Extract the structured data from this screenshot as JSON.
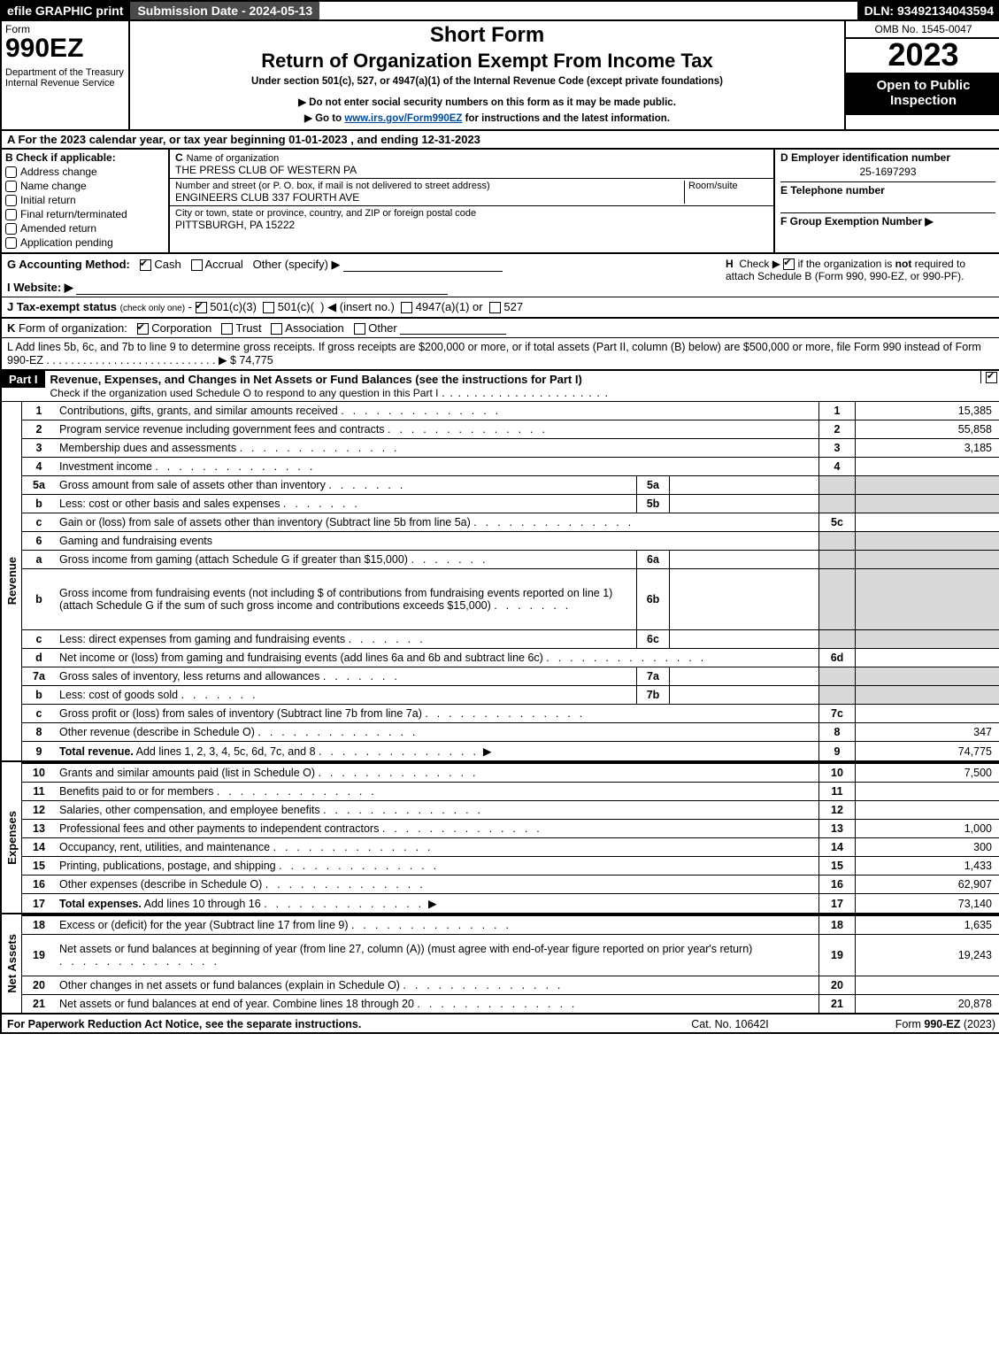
{
  "topbar": {
    "efile": "efile GRAPHIC print",
    "submission": "Submission Date - 2024-05-13",
    "dln": "DLN: 93492134043594"
  },
  "header": {
    "form_label": "Form",
    "form_no": "990EZ",
    "dept": "Department of the Treasury\nInternal Revenue Service",
    "short": "Short Form",
    "return": "Return of Organization Exempt From Income Tax",
    "under": "Under section 501(c), 527, or 4947(a)(1) of the Internal Revenue Code (except private foundations)",
    "warn": "▶ Do not enter social security numbers on this form as it may be made public.",
    "goto_pre": "▶ Go to ",
    "goto_link": "www.irs.gov/Form990EZ",
    "goto_post": " for instructions and the latest information.",
    "omb": "OMB No. 1545-0047",
    "year": "2023",
    "open": "Open to Public Inspection"
  },
  "A": "A  For the 2023 calendar year, or tax year beginning 01-01-2023 , and ending 12-31-2023",
  "B": {
    "label": "B",
    "head": "Check if applicable:",
    "items": [
      "Address change",
      "Name change",
      "Initial return",
      "Final return/terminated",
      "Amended return",
      "Application pending"
    ]
  },
  "C": {
    "c_label": "C",
    "name_label": "Name of organization",
    "name": "THE PRESS CLUB OF WESTERN PA",
    "addr_label": "Number and street (or P. O. box, if mail is not delivered to street address)",
    "room_label": "Room/suite",
    "addr": "ENGINEERS CLUB 337 FOURTH AVE",
    "city_label": "City or town, state or province, country, and ZIP or foreign postal code",
    "city": "PITTSBURGH, PA  15222"
  },
  "D": {
    "d_label": "D Employer identification number",
    "ein": "25-1697293",
    "e_label": "E Telephone number",
    "f_label": "F Group Exemption Number   ▶"
  },
  "G": {
    "label": "G Accounting Method:",
    "cash": "Cash",
    "accrual": "Accrual",
    "other": "Other (specify) ▶"
  },
  "H": "H   Check ▶       if the organization is not required to attach Schedule B (Form 990, 990-EZ, or 990-PF).",
  "I": "I Website: ▶",
  "J": "J Tax-exempt status (check only one) -    501(c)(3)     501(c)(  ) ◀ (insert no.)     4947(a)(1) or     527",
  "K": "K Form of organization:      Corporation     Trust     Association     Other",
  "L": "L Add lines 5b, 6c, and 7b to line 9 to determine gross receipts. If gross receipts are $200,000 or more, or if total assets (Part II, column (B) below) are $500,000 or more, file Form 990 instead of Form 990-EZ  .  .  .  .  .  .  .  .  .  .  .  .  .  .  .  .  .  .  .  .  .  .  .  .  .  .  .  .   ▶ $ 74,775",
  "part1": {
    "label": "Part I",
    "title": "Revenue, Expenses, and Changes in Net Assets or Fund Balances (see the instructions for Part I)",
    "sub": "Check if the organization used Schedule O to respond to any question in this Part I"
  },
  "sections": [
    {
      "vlabel": "Revenue",
      "rows": [
        {
          "ln": "1",
          "desc": "Contributions, gifts, grants, and similar amounts received",
          "rn": "1",
          "amt": "15,385"
        },
        {
          "ln": "2",
          "desc": "Program service revenue including government fees and contracts",
          "rn": "2",
          "amt": "55,858"
        },
        {
          "ln": "3",
          "desc": "Membership dues and assessments",
          "rn": "3",
          "amt": "3,185"
        },
        {
          "ln": "4",
          "desc": "Investment income",
          "rn": "4",
          "amt": ""
        },
        {
          "ln": "5a",
          "desc": "Gross amount from sale of assets other than inventory",
          "mid": "5a",
          "shade": true
        },
        {
          "ln": "b",
          "desc": "Less: cost or other basis and sales expenses",
          "mid": "5b",
          "shade": true
        },
        {
          "ln": "c",
          "desc": "Gain or (loss) from sale of assets other than inventory (Subtract line 5b from line 5a)",
          "rn": "5c",
          "amt": ""
        },
        {
          "ln": "6",
          "desc": "Gaming and fundraising events",
          "shade": true,
          "noNum": true
        },
        {
          "ln": "a",
          "desc": "Gross income from gaming (attach Schedule G if greater than $15,000)",
          "mid": "6a",
          "shade": true
        },
        {
          "ln": "b",
          "desc": "Gross income from fundraising events (not including $                    of contributions from fundraising events reported on line 1) (attach Schedule G if the sum of such gross income and contributions exceeds $15,000)",
          "mid": "6b",
          "shade": true,
          "tall": true
        },
        {
          "ln": "c",
          "desc": "Less: direct expenses from gaming and fundraising events",
          "mid": "6c",
          "shade": true
        },
        {
          "ln": "d",
          "desc": "Net income or (loss) from gaming and fundraising events (add lines 6a and 6b and subtract line 6c)",
          "rn": "6d",
          "amt": ""
        },
        {
          "ln": "7a",
          "desc": "Gross sales of inventory, less returns and allowances",
          "mid": "7a",
          "shade": true
        },
        {
          "ln": "b",
          "desc": "Less: cost of goods sold",
          "mid": "7b",
          "shade": true
        },
        {
          "ln": "c",
          "desc": "Gross profit or (loss) from sales of inventory (Subtract line 7b from line 7a)",
          "rn": "7c",
          "amt": ""
        },
        {
          "ln": "8",
          "desc": "Other revenue (describe in Schedule O)",
          "rn": "8",
          "amt": "347"
        },
        {
          "ln": "9",
          "desc": "Total revenue. Add lines 1, 2, 3, 4, 5c, 6d, 7c, and 8",
          "rn": "9",
          "amt": "74,775",
          "bold": true,
          "arrow": true
        }
      ]
    },
    {
      "vlabel": "Expenses",
      "rows": [
        {
          "ln": "10",
          "desc": "Grants and similar amounts paid (list in Schedule O)",
          "rn": "10",
          "amt": "7,500",
          "thick": true
        },
        {
          "ln": "11",
          "desc": "Benefits paid to or for members",
          "rn": "11",
          "amt": ""
        },
        {
          "ln": "12",
          "desc": "Salaries, other compensation, and employee benefits",
          "rn": "12",
          "amt": ""
        },
        {
          "ln": "13",
          "desc": "Professional fees and other payments to independent contractors",
          "rn": "13",
          "amt": "1,000"
        },
        {
          "ln": "14",
          "desc": "Occupancy, rent, utilities, and maintenance",
          "rn": "14",
          "amt": "300"
        },
        {
          "ln": "15",
          "desc": "Printing, publications, postage, and shipping",
          "rn": "15",
          "amt": "1,433"
        },
        {
          "ln": "16",
          "desc": "Other expenses (describe in Schedule O)",
          "rn": "16",
          "amt": "62,907"
        },
        {
          "ln": "17",
          "desc": "Total expenses. Add lines 10 through 16",
          "rn": "17",
          "amt": "73,140",
          "bold": true,
          "arrow": true
        }
      ]
    },
    {
      "vlabel": "Net Assets",
      "rows": [
        {
          "ln": "18",
          "desc": "Excess or (deficit) for the year (Subtract line 17 from line 9)",
          "rn": "18",
          "amt": "1,635",
          "thick": true
        },
        {
          "ln": "19",
          "desc": "Net assets or fund balances at beginning of year (from line 27, column (A)) (must agree with end-of-year figure reported on prior year's return)",
          "rn": "19",
          "amt": "19,243",
          "tall": true
        },
        {
          "ln": "20",
          "desc": "Other changes in net assets or fund balances (explain in Schedule O)",
          "rn": "20",
          "amt": ""
        },
        {
          "ln": "21",
          "desc": "Net assets or fund balances at end of year. Combine lines 18 through 20",
          "rn": "21",
          "amt": "20,878"
        }
      ]
    }
  ],
  "footer": {
    "left": "For Paperwork Reduction Act Notice, see the separate instructions.",
    "mid": "Cat. No. 10642I",
    "right_pre": "Form ",
    "right_form": "990-EZ",
    "right_yr": " (2023)"
  }
}
